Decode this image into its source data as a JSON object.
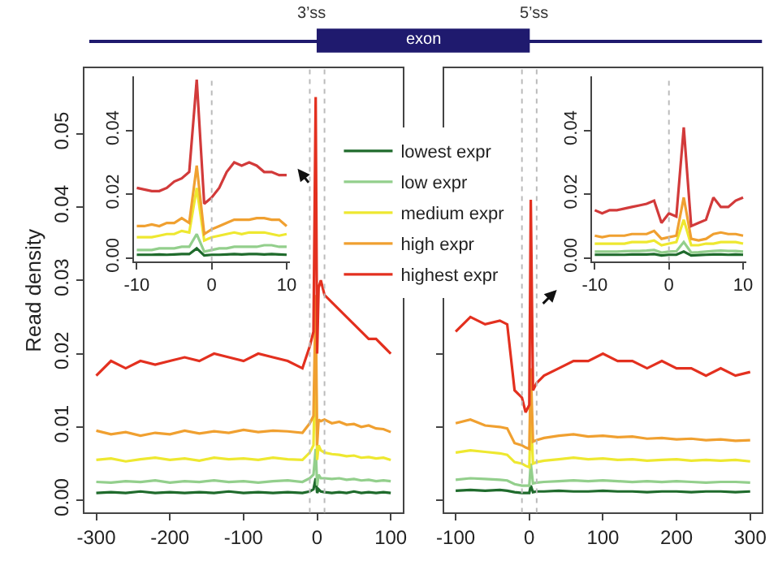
{
  "chart_data": [
    {
      "type": "other",
      "annotations": [
        "3’ss",
        "5’ss",
        "exon"
      ]
    },
    {
      "type": "line",
      "ylabel": "Read density",
      "legend": "top right",
      "marker": "none",
      "x": [
        -300,
        -280,
        -260,
        -240,
        -220,
        -200,
        -180,
        -160,
        -140,
        -120,
        -100,
        -80,
        -60,
        -40,
        -20,
        -10,
        -5,
        -2,
        0,
        2,
        5,
        10,
        20,
        30,
        40,
        50,
        60,
        70,
        80,
        90,
        100
      ],
      "xlim": [
        -316,
        116
      ],
      "ylim": [
        -0.0017,
        0.0589
      ],
      "xticks": [
        -300,
        -200,
        -100,
        0,
        100
      ],
      "yticks": [
        {
          "value": 0,
          "label": "0.00"
        },
        {
          "value": 0.01,
          "label": "0.01"
        },
        {
          "value": 0.02,
          "label": "0.02"
        },
        {
          "value": 0.03,
          "label": "0.03"
        },
        {
          "value": 0.04,
          "label": "0.04"
        },
        {
          "value": 0.05,
          "label": "0.05"
        }
      ],
      "ref_lines": [
        {
          "axis": "x",
          "value": -10,
          "color": "#bbbbbb",
          "line_style": "dotted"
        },
        {
          "axis": "x",
          "value": 10,
          "color": "#bbbbbb",
          "line_style": "dotted"
        }
      ],
      "series": [
        {
          "name": "lowest expr",
          "color": "#1f6b2c",
          "values": [
            0.001,
            0.0011,
            0.001,
            0.0012,
            0.001,
            0.0011,
            0.001,
            0.0011,
            0.001,
            0.0012,
            0.001,
            0.0011,
            0.001,
            0.0011,
            0.001,
            0.0012,
            0.0015,
            0.003,
            0.001,
            0.0015,
            0.0012,
            0.0011,
            0.001,
            0.0011,
            0.001,
            0.0012,
            0.001,
            0.0011,
            0.001,
            0.0011,
            0.001
          ]
        },
        {
          "name": "low expr",
          "color": "#93cf8c",
          "values": [
            0.0025,
            0.0024,
            0.0026,
            0.0025,
            0.0027,
            0.0024,
            0.0026,
            0.0025,
            0.0027,
            0.0025,
            0.0026,
            0.0024,
            0.0026,
            0.0027,
            0.0025,
            0.003,
            0.0035,
            0.007,
            0.002,
            0.0035,
            0.003,
            0.003,
            0.0029,
            0.003,
            0.0028,
            0.0029,
            0.0027,
            0.0028,
            0.0026,
            0.0027,
            0.0026
          ]
        },
        {
          "name": "medium expr",
          "color": "#eee830",
          "values": [
            0.0055,
            0.0057,
            0.0053,
            0.0056,
            0.0058,
            0.0055,
            0.0057,
            0.0054,
            0.0058,
            0.0056,
            0.0057,
            0.0055,
            0.0058,
            0.0056,
            0.0055,
            0.0065,
            0.0075,
            0.022,
            0.0055,
            0.0075,
            0.0068,
            0.0065,
            0.0063,
            0.0062,
            0.006,
            0.0061,
            0.0058,
            0.0059,
            0.0057,
            0.0058,
            0.0055
          ]
        },
        {
          "name": "high expr",
          "color": "#f0a030",
          "values": [
            0.0095,
            0.009,
            0.0093,
            0.0088,
            0.0092,
            0.009,
            0.0095,
            0.0091,
            0.0094,
            0.0092,
            0.0096,
            0.0093,
            0.0095,
            0.0094,
            0.0092,
            0.0105,
            0.0115,
            0.028,
            0.0075,
            0.011,
            0.0108,
            0.011,
            0.0105,
            0.0107,
            0.0103,
            0.0104,
            0.01,
            0.0102,
            0.0098,
            0.0097,
            0.0093
          ]
        },
        {
          "name": "highest expr",
          "color": "#e3301f",
          "values": [
            0.017,
            0.019,
            0.018,
            0.019,
            0.0185,
            0.019,
            0.0195,
            0.019,
            0.02,
            0.0195,
            0.019,
            0.02,
            0.0195,
            0.019,
            0.018,
            0.021,
            0.023,
            0.055,
            0.02,
            0.029,
            0.03,
            0.028,
            0.027,
            0.026,
            0.025,
            0.024,
            0.023,
            0.022,
            0.022,
            0.021,
            0.02
          ]
        }
      ]
    },
    {
      "type": "line",
      "marker": "none",
      "tick_labels": "x",
      "x": [
        -100,
        -80,
        -60,
        -40,
        -30,
        -20,
        -10,
        -5,
        0,
        2,
        5,
        10,
        20,
        40,
        60,
        80,
        100,
        120,
        140,
        160,
        180,
        200,
        220,
        240,
        260,
        280,
        300
      ],
      "xlim": [
        -116,
        316
      ],
      "ylim": [
        -0.0017,
        0.0589
      ],
      "xticks": [
        -100,
        0,
        100,
        200,
        300
      ],
      "yticks": [
        0,
        0.01,
        0.02,
        0.03,
        0.04,
        0.05
      ],
      "ref_lines": [
        {
          "axis": "x",
          "value": -10,
          "color": "#bbbbbb",
          "line_style": "dotted"
        },
        {
          "axis": "x",
          "value": 10,
          "color": "#bbbbbb",
          "line_style": "dotted"
        }
      ],
      "series": [
        {
          "color": "#1f6b2c",
          "values": [
            0.0013,
            0.0014,
            0.0013,
            0.0014,
            0.0013,
            0.0011,
            0.001,
            0.001,
            0.001,
            0.002,
            0.0011,
            0.0012,
            0.0012,
            0.0013,
            0.0012,
            0.0012,
            0.0013,
            0.0012,
            0.0012,
            0.0011,
            0.0012,
            0.0012,
            0.0011,
            0.0012,
            0.0012,
            0.0011,
            0.0012
          ]
        },
        {
          "color": "#93cf8c",
          "values": [
            0.0028,
            0.003,
            0.0029,
            0.0028,
            0.0027,
            0.0022,
            0.002,
            0.002,
            0.002,
            0.005,
            0.0023,
            0.0024,
            0.0025,
            0.0026,
            0.0027,
            0.0026,
            0.0027,
            0.0026,
            0.0025,
            0.0026,
            0.0025,
            0.0026,
            0.0025,
            0.0024,
            0.0025,
            0.0025,
            0.0024
          ]
        },
        {
          "color": "#eee830",
          "values": [
            0.0065,
            0.0068,
            0.0066,
            0.0064,
            0.0062,
            0.0052,
            0.005,
            0.0047,
            0.0045,
            0.012,
            0.005,
            0.0052,
            0.0054,
            0.0056,
            0.0058,
            0.0056,
            0.0057,
            0.0055,
            0.0056,
            0.0054,
            0.0055,
            0.0056,
            0.0054,
            0.0055,
            0.0054,
            0.0055,
            0.0053
          ]
        },
        {
          "color": "#f0a030",
          "values": [
            0.0105,
            0.011,
            0.0102,
            0.01,
            0.0098,
            0.0078,
            0.0075,
            0.0072,
            0.007,
            0.018,
            0.008,
            0.0082,
            0.0085,
            0.0088,
            0.009,
            0.0087,
            0.0088,
            0.0086,
            0.0087,
            0.0084,
            0.0085,
            0.0083,
            0.0084,
            0.0082,
            0.0083,
            0.0081,
            0.0082
          ]
        },
        {
          "color": "#e3301f",
          "values": [
            0.023,
            0.025,
            0.024,
            0.0245,
            0.024,
            0.015,
            0.014,
            0.012,
            0.013,
            0.041,
            0.015,
            0.016,
            0.017,
            0.018,
            0.019,
            0.019,
            0.02,
            0.019,
            0.019,
            0.018,
            0.019,
            0.018,
            0.018,
            0.017,
            0.018,
            0.017,
            0.0175
          ]
        }
      ]
    },
    {
      "type": "line",
      "marker": "none",
      "x": [
        -10,
        -9,
        -8,
        -7,
        -6,
        -5,
        -4,
        -3,
        -2,
        -1,
        0,
        1,
        2,
        3,
        4,
        5,
        6,
        7,
        8,
        9,
        10
      ],
      "xlim": [
        -10.4,
        10.4
      ],
      "ylim": [
        -0.001,
        0.057
      ],
      "xticks": [
        -10,
        0,
        10
      ],
      "yticks": [
        {
          "value": 0,
          "label": "0.00"
        },
        {
          "value": 0.02,
          "label": "0.02"
        },
        {
          "value": 0.04,
          "label": "0.04"
        }
      ],
      "ref_lines": [
        {
          "axis": "x",
          "value": 0,
          "color": "#bbbbbb",
          "line_style": "dotted"
        }
      ],
      "series": [
        {
          "color": "#1f6b2c",
          "values": [
            0.001,
            0.001,
            0.001,
            0.0011,
            0.001,
            0.0011,
            0.0012,
            0.0012,
            0.003,
            0.0008,
            0.001,
            0.001,
            0.0011,
            0.0012,
            0.0011,
            0.0012,
            0.0012,
            0.0011,
            0.0012,
            0.0011,
            0.001
          ]
        },
        {
          "color": "#93cf8c",
          "values": [
            0.0025,
            0.0025,
            0.0025,
            0.003,
            0.003,
            0.003,
            0.0035,
            0.0035,
            0.0075,
            0.002,
            0.0025,
            0.003,
            0.003,
            0.0035,
            0.0035,
            0.0035,
            0.0035,
            0.004,
            0.004,
            0.0035,
            0.0035
          ]
        },
        {
          "color": "#eee830",
          "values": [
            0.0065,
            0.0065,
            0.0065,
            0.007,
            0.0075,
            0.0075,
            0.0085,
            0.008,
            0.022,
            0.0055,
            0.0065,
            0.007,
            0.0075,
            0.008,
            0.0075,
            0.008,
            0.008,
            0.008,
            0.0075,
            0.007,
            0.0075
          ]
        },
        {
          "color": "#f0a030",
          "values": [
            0.01,
            0.01,
            0.0105,
            0.01,
            0.011,
            0.011,
            0.0125,
            0.011,
            0.029,
            0.0075,
            0.009,
            0.01,
            0.011,
            0.012,
            0.012,
            0.012,
            0.0125,
            0.0125,
            0.012,
            0.012,
            0.01
          ]
        },
        {
          "color": "#d23a3a",
          "values": [
            0.022,
            0.0215,
            0.021,
            0.021,
            0.022,
            0.024,
            0.025,
            0.027,
            0.056,
            0.017,
            0.019,
            0.022,
            0.027,
            0.03,
            0.029,
            0.03,
            0.029,
            0.027,
            0.027,
            0.026,
            0.026
          ]
        }
      ]
    },
    {
      "type": "line",
      "marker": "none",
      "x": [
        -10,
        -9,
        -8,
        -7,
        -6,
        -5,
        -4,
        -3,
        -2,
        -1,
        0,
        1,
        2,
        3,
        4,
        5,
        6,
        7,
        8,
        9,
        10
      ],
      "xlim": [
        -10.4,
        10.4
      ],
      "ylim": [
        -0.001,
        0.057
      ],
      "xticks": [
        -10,
        0,
        10
      ],
      "yticks": [
        {
          "value": 0,
          "label": "0.00"
        },
        {
          "value": 0.02,
          "label": "0.02"
        },
        {
          "value": 0.04,
          "label": "0.04"
        }
      ],
      "ref_lines": [
        {
          "axis": "x",
          "value": 0,
          "color": "#bbbbbb",
          "line_style": "dotted"
        }
      ],
      "series": [
        {
          "color": "#1f6b2c",
          "values": [
            0.001,
            0.001,
            0.001,
            0.001,
            0.001,
            0.0011,
            0.0011,
            0.0011,
            0.0012,
            0.0008,
            0.001,
            0.001,
            0.002,
            0.0008,
            0.0009,
            0.001,
            0.0011,
            0.0011,
            0.001,
            0.0011,
            0.001
          ]
        },
        {
          "color": "#93cf8c",
          "values": [
            0.002,
            0.002,
            0.002,
            0.002,
            0.0021,
            0.0022,
            0.0022,
            0.0023,
            0.0025,
            0.0017,
            0.002,
            0.0021,
            0.005,
            0.0017,
            0.0018,
            0.002,
            0.0022,
            0.0023,
            0.0022,
            0.0022,
            0.002
          ]
        },
        {
          "color": "#eee830",
          "values": [
            0.0045,
            0.0045,
            0.0045,
            0.0045,
            0.0045,
            0.005,
            0.005,
            0.005,
            0.0055,
            0.004,
            0.0045,
            0.005,
            0.012,
            0.004,
            0.004,
            0.0045,
            0.0045,
            0.005,
            0.005,
            0.005,
            0.0045
          ]
        },
        {
          "color": "#f0a030",
          "values": [
            0.007,
            0.0065,
            0.007,
            0.007,
            0.007,
            0.0075,
            0.0075,
            0.0075,
            0.0085,
            0.006,
            0.0065,
            0.007,
            0.019,
            0.006,
            0.0055,
            0.006,
            0.0075,
            0.008,
            0.0075,
            0.0075,
            0.007
          ]
        },
        {
          "color": "#d23a3a",
          "values": [
            0.015,
            0.014,
            0.015,
            0.015,
            0.0155,
            0.016,
            0.0165,
            0.017,
            0.018,
            0.011,
            0.014,
            0.013,
            0.041,
            0.01,
            0.011,
            0.012,
            0.019,
            0.016,
            0.016,
            0.018,
            0.019
          ]
        }
      ]
    }
  ]
}
